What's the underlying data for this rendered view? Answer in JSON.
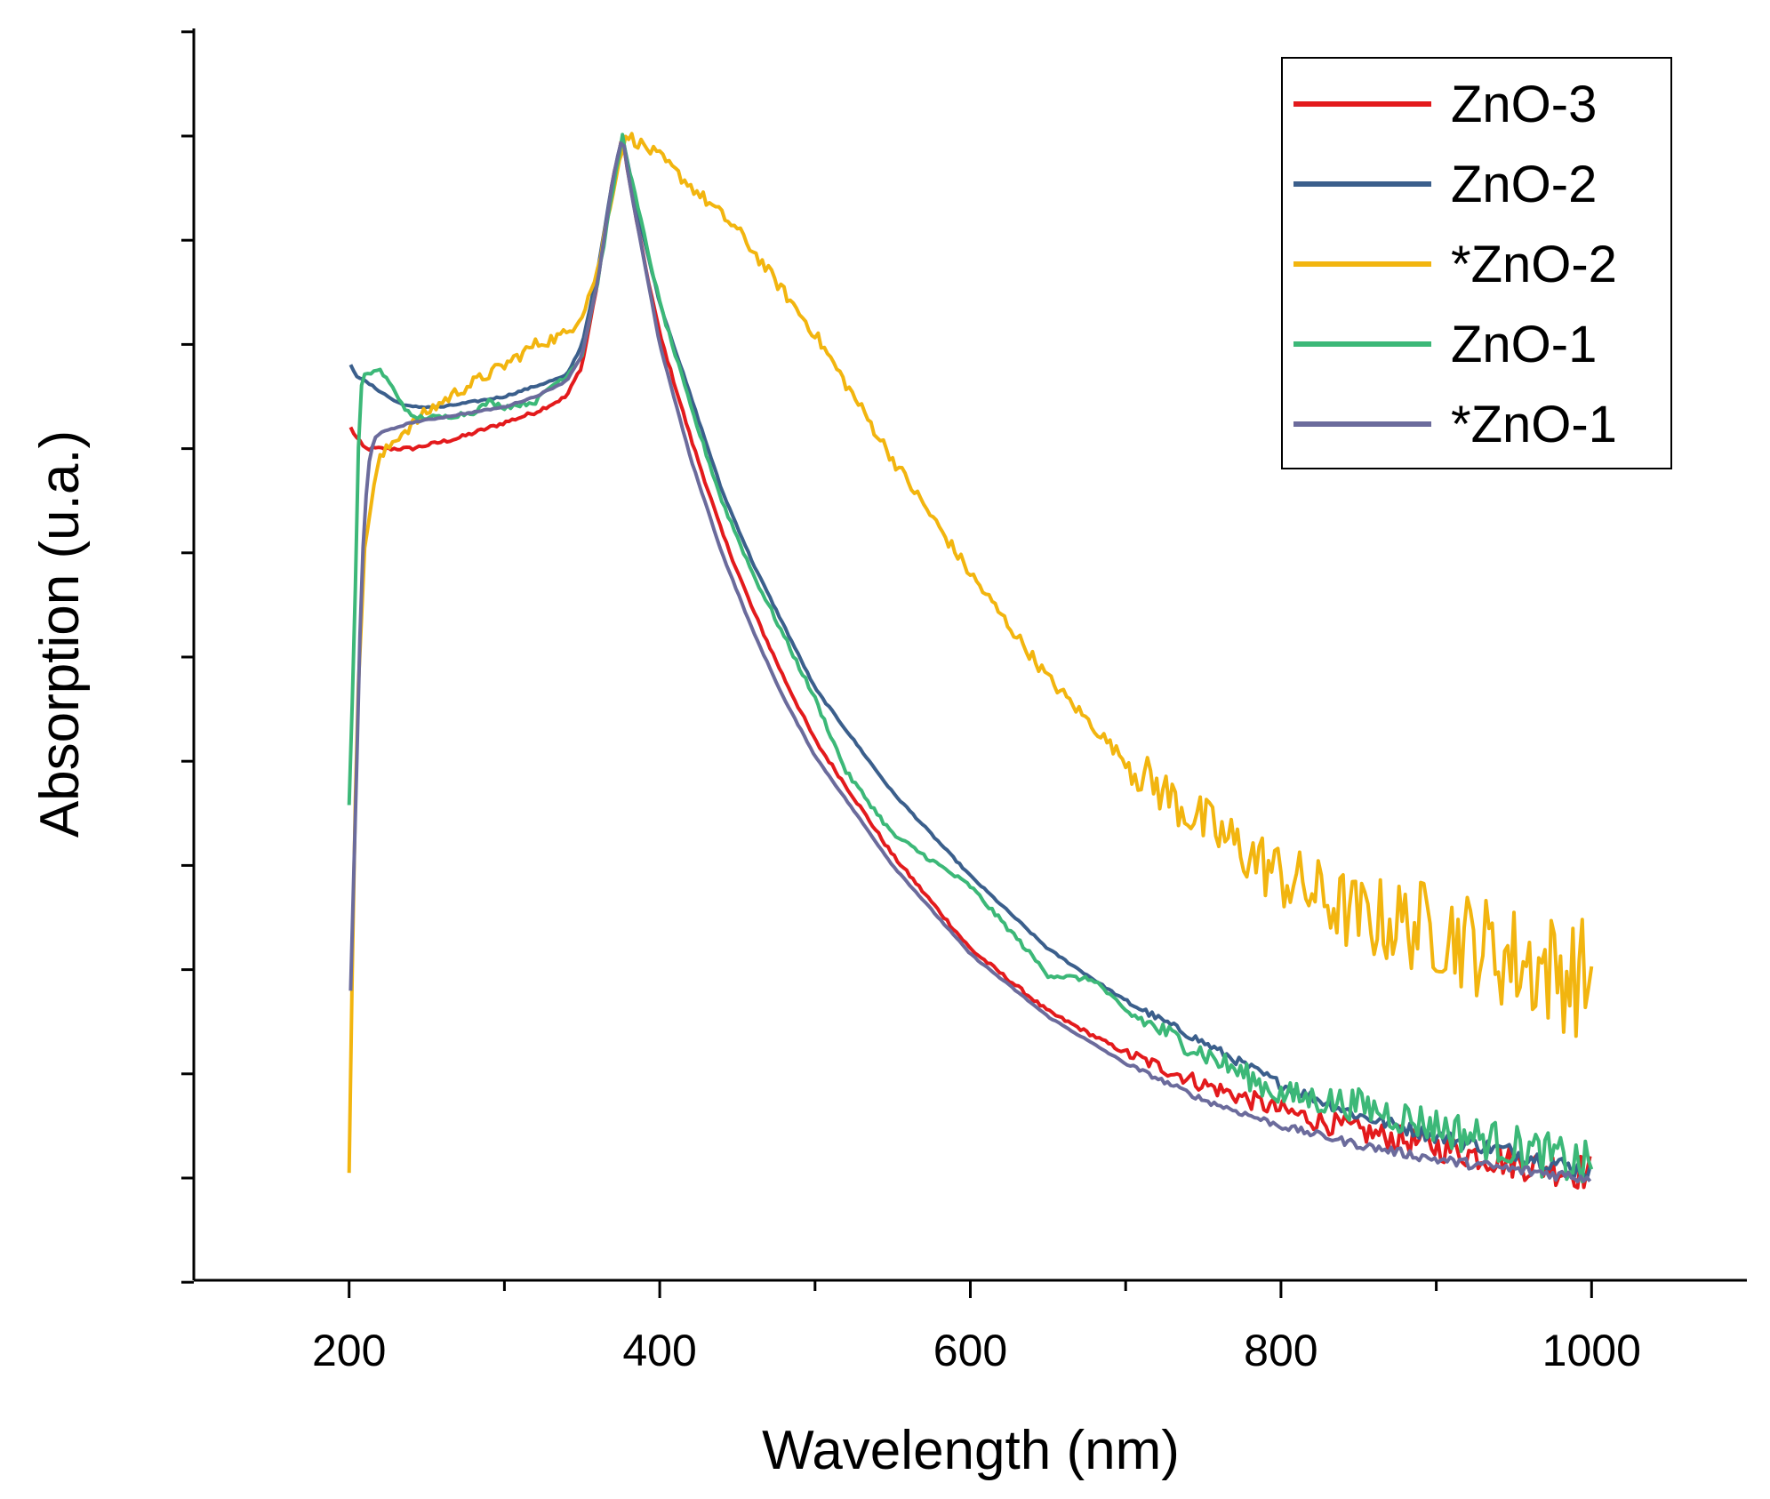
{
  "chart_data": {
    "type": "line",
    "title": "",
    "xlabel": "Wavelength (nm)",
    "ylabel": "Absorption (u.a.)",
    "xlim": [
      100,
      1100
    ],
    "ylim": [
      -0.1,
      1.15
    ],
    "x_ticks": [
      200,
      400,
      600,
      800,
      1000
    ],
    "y_tick_labels": "none",
    "grid": false,
    "legend": {
      "position": "top-right",
      "entries": [
        "ZnO-3",
        "ZnO-2",
        "*ZnO-2",
        "ZnO-1",
        "*ZnO-1"
      ]
    },
    "series": [
      {
        "name": "ZnO-3",
        "color": "#e31a1c",
        "noise": 0.006,
        "x": [
          201,
          205,
          210,
          215,
          220,
          240,
          270,
          300,
          320,
          340,
          350,
          360,
          370,
          376,
          380,
          390,
          400,
          420,
          440,
          460,
          480,
          500,
          550,
          600,
          650,
          700,
          750,
          800,
          850,
          900,
          950,
          1000
        ],
        "y": [
          0.72,
          0.71,
          0.7,
          0.7,
          0.7,
          0.7,
          0.71,
          0.725,
          0.735,
          0.75,
          0.78,
          0.86,
          0.96,
          1.0,
          0.96,
          0.88,
          0.81,
          0.71,
          0.62,
          0.545,
          0.48,
          0.42,
          0.31,
          0.22,
          0.16,
          0.12,
          0.09,
          0.065,
          0.045,
          0.03,
          0.015,
          0.005
        ]
      },
      {
        "name": "ZnO-2",
        "color": "#3b5f8c",
        "noise": 0.003,
        "x": [
          201,
          205,
          210,
          220,
          230,
          240,
          260,
          280,
          300,
          320,
          340,
          350,
          360,
          370,
          376,
          380,
          390,
          400,
          420,
          440,
          460,
          480,
          500,
          550,
          600,
          650,
          700,
          750,
          800,
          850,
          900,
          950,
          1000
        ],
        "y": [
          0.78,
          0.77,
          0.765,
          0.755,
          0.745,
          0.74,
          0.74,
          0.745,
          0.75,
          0.76,
          0.77,
          0.8,
          0.87,
          0.96,
          1.0,
          0.97,
          0.9,
          0.84,
          0.75,
          0.66,
          0.59,
          0.53,
          0.47,
          0.37,
          0.29,
          0.22,
          0.17,
          0.13,
          0.09,
          0.06,
          0.04,
          0.025,
          0.005
        ]
      },
      {
        "name": "*ZnO-2",
        "color": "#f2b50f",
        "noise": 0.02,
        "x": [
          200,
          202,
          205,
          210,
          215,
          220,
          230,
          250,
          270,
          300,
          320,
          340,
          350,
          360,
          370,
          376,
          380,
          400,
          450,
          500,
          550,
          600,
          650,
          700,
          750,
          800,
          850,
          900,
          950,
          1000
        ],
        "y": [
          0.0,
          0.2,
          0.45,
          0.6,
          0.66,
          0.69,
          0.71,
          0.735,
          0.755,
          0.78,
          0.8,
          0.81,
          0.83,
          0.87,
          0.95,
          0.99,
          1.0,
          0.98,
          0.91,
          0.81,
          0.69,
          0.58,
          0.48,
          0.4,
          0.34,
          0.29,
          0.25,
          0.24,
          0.21,
          0.19
        ]
      },
      {
        "name": "ZnO-1",
        "color": "#3cb878",
        "noise": 0.008,
        "x": [
          200,
          203,
          206,
          208,
          210,
          212,
          215,
          220,
          225,
          240,
          260,
          280,
          290,
          300,
          320,
          330,
          340,
          350,
          360,
          370,
          376,
          380,
          400,
          420,
          440,
          460,
          480,
          500,
          520,
          550,
          580,
          600,
          630,
          650,
          680,
          700,
          750,
          800,
          850,
          900,
          950,
          1000
        ],
        "y": [
          0.36,
          0.5,
          0.7,
          0.76,
          0.77,
          0.77,
          0.775,
          0.775,
          0.765,
          0.73,
          0.73,
          0.735,
          0.745,
          0.74,
          0.745,
          0.76,
          0.77,
          0.79,
          0.86,
          0.95,
          1.0,
          0.97,
          0.84,
          0.74,
          0.65,
          0.58,
          0.52,
          0.46,
          0.39,
          0.33,
          0.3,
          0.28,
          0.23,
          0.195,
          0.19,
          0.16,
          0.12,
          0.08,
          0.07,
          0.05,
          0.03,
          0.01
        ]
      },
      {
        "name": "*ZnO-1",
        "color": "#6b6b9c",
        "noise": 0.002,
        "x": [
          201,
          205,
          208,
          212,
          216,
          220,
          230,
          240,
          260,
          280,
          300,
          320,
          340,
          350,
          360,
          370,
          376,
          380,
          400,
          420,
          440,
          460,
          480,
          500,
          550,
          600,
          650,
          700,
          750,
          800,
          850,
          900,
          950,
          1000
        ],
        "y": [
          0.18,
          0.4,
          0.58,
          0.68,
          0.71,
          0.715,
          0.72,
          0.725,
          0.73,
          0.735,
          0.74,
          0.75,
          0.765,
          0.79,
          0.86,
          0.96,
          1.0,
          0.96,
          0.8,
          0.69,
          0.6,
          0.525,
          0.46,
          0.405,
          0.3,
          0.215,
          0.155,
          0.11,
          0.075,
          0.05,
          0.032,
          0.018,
          0.008,
          0.0
        ]
      }
    ]
  }
}
